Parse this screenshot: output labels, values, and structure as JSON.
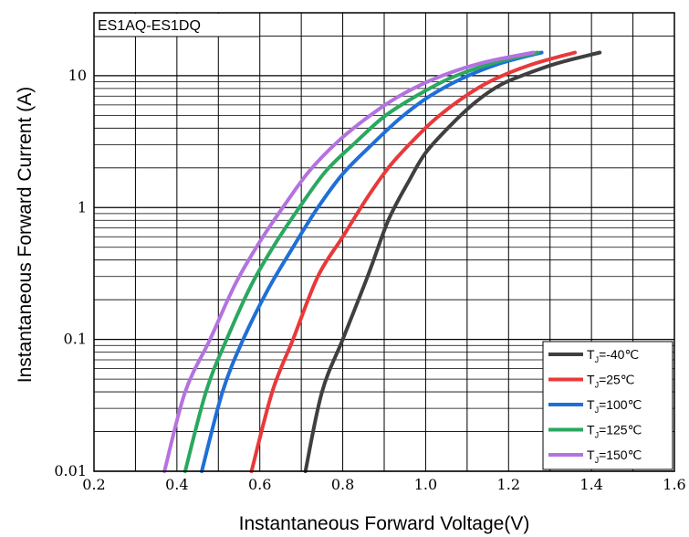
{
  "chart_data": {
    "type": "line",
    "title": "",
    "box_label": "ES1AQ-ES1DQ",
    "xlabel": "Instantaneous Forward Voltage(V)",
    "ylabel": "Instantaneous Forward Current (A)",
    "x_scale": "linear",
    "y_scale": "log",
    "xlim": [
      0.2,
      1.6
    ],
    "ylim": [
      0.01,
      30
    ],
    "grid": true,
    "legend_position": "bottom-right",
    "x_ticks": [
      {
        "value": 0.2,
        "label": "0.2"
      },
      {
        "value": 0.4,
        "label": "0.4"
      },
      {
        "value": 0.6,
        "label": "0.6"
      },
      {
        "value": 0.8,
        "label": "0.8"
      },
      {
        "value": 1.0,
        "label": "1.0"
      },
      {
        "value": 1.2,
        "label": "1.2"
      },
      {
        "value": 1.4,
        "label": "1.4"
      },
      {
        "value": 1.6,
        "label": "1.6"
      }
    ],
    "y_ticks": [
      {
        "value": 0.01,
        "label": "0.01"
      },
      {
        "value": 0.1,
        "label": "0.1"
      },
      {
        "value": 1,
        "label": "1"
      },
      {
        "value": 10,
        "label": "10"
      }
    ],
    "series": [
      {
        "label_main": "T",
        "label_sub": "J",
        "label_rest": "=-40℃",
        "color": "#3f3f3f",
        "points": [
          [
            0.71,
            0.01
          ],
          [
            0.75,
            0.04
          ],
          [
            0.8,
            0.1
          ],
          [
            0.86,
            0.3
          ],
          [
            0.91,
            0.8
          ],
          [
            0.96,
            1.6
          ],
          [
            1.0,
            2.6
          ],
          [
            1.06,
            4.2
          ],
          [
            1.12,
            6.3
          ],
          [
            1.18,
            8.5
          ],
          [
            1.25,
            10.5
          ],
          [
            1.32,
            12.5
          ],
          [
            1.42,
            15
          ]
        ]
      },
      {
        "label_main": "T",
        "label_sub": "J",
        "label_rest": "=25℃",
        "color": "#e8393a",
        "points": [
          [
            0.58,
            0.01
          ],
          [
            0.63,
            0.04
          ],
          [
            0.68,
            0.1
          ],
          [
            0.74,
            0.3
          ],
          [
            0.8,
            0.6
          ],
          [
            0.86,
            1.2
          ],
          [
            0.91,
            2.0
          ],
          [
            0.96,
            3.0
          ],
          [
            1.02,
            4.6
          ],
          [
            1.09,
            6.8
          ],
          [
            1.16,
            9.2
          ],
          [
            1.25,
            12
          ],
          [
            1.36,
            15
          ]
        ]
      },
      {
        "label_main": "T",
        "label_sub": "J",
        "label_rest": "=100℃",
        "color": "#1f6fd6",
        "points": [
          [
            0.46,
            0.01
          ],
          [
            0.51,
            0.04
          ],
          [
            0.56,
            0.1
          ],
          [
            0.62,
            0.24
          ],
          [
            0.68,
            0.5
          ],
          [
            0.74,
            1.0
          ],
          [
            0.8,
            1.8
          ],
          [
            0.87,
            3.0
          ],
          [
            0.94,
            4.8
          ],
          [
            1.01,
            7.0
          ],
          [
            1.09,
            9.6
          ],
          [
            1.18,
            12.4
          ],
          [
            1.28,
            15
          ]
        ]
      },
      {
        "label_main": "T",
        "label_sub": "J",
        "label_rest": "=125℃",
        "color": "#2aa860",
        "points": [
          [
            0.42,
            0.01
          ],
          [
            0.47,
            0.04
          ],
          [
            0.52,
            0.1
          ],
          [
            0.58,
            0.26
          ],
          [
            0.64,
            0.55
          ],
          [
            0.7,
            1.05
          ],
          [
            0.76,
            1.9
          ],
          [
            0.83,
            3.1
          ],
          [
            0.9,
            4.9
          ],
          [
            0.98,
            7.1
          ],
          [
            1.06,
            9.6
          ],
          [
            1.16,
            12.4
          ],
          [
            1.27,
            15
          ]
        ]
      },
      {
        "label_main": "T",
        "label_sub": "J",
        "label_rest": "=150℃",
        "color": "#b472e0",
        "points": [
          [
            0.37,
            0.01
          ],
          [
            0.42,
            0.04
          ],
          [
            0.48,
            0.1
          ],
          [
            0.54,
            0.26
          ],
          [
            0.6,
            0.55
          ],
          [
            0.66,
            1.05
          ],
          [
            0.72,
            1.9
          ],
          [
            0.79,
            3.2
          ],
          [
            0.87,
            5.1
          ],
          [
            0.95,
            7.4
          ],
          [
            1.04,
            10.0
          ],
          [
            1.14,
            12.6
          ],
          [
            1.26,
            15
          ]
        ]
      }
    ]
  }
}
